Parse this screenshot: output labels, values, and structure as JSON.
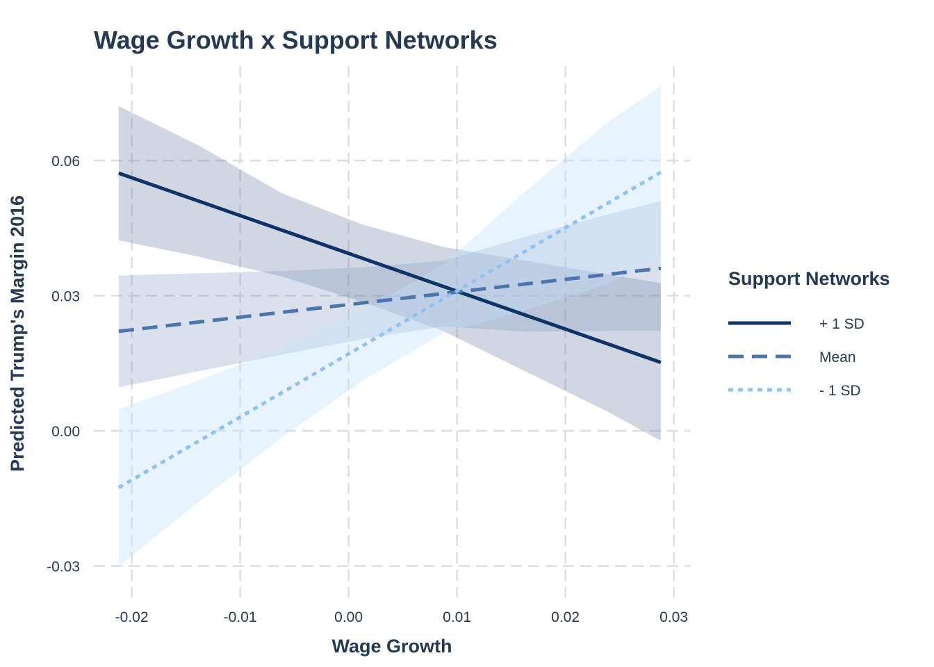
{
  "chart_data": {
    "type": "line",
    "title": "Wage Growth x Support Networks",
    "xlabel": "Wage Growth",
    "ylabel": "Predicted Trump's Margin 2016",
    "xlim": [
      -0.0235,
      0.0315
    ],
    "ylim": [
      -0.037,
      0.081
    ],
    "x_ticks": [
      -0.02,
      -0.01,
      0.0,
      0.01,
      0.02,
      0.03
    ],
    "x_tick_labels": [
      "-0.02",
      "-0.01",
      "0.00",
      "0.01",
      "0.02",
      "0.03"
    ],
    "y_ticks": [
      -0.03,
      0.0,
      0.03,
      0.06
    ],
    "y_tick_labels": [
      "-0.03",
      "0.00",
      "0.03",
      "0.06"
    ],
    "grid": true,
    "grid_style": "dashed",
    "legend": {
      "title": "Support Networks",
      "placement": "right"
    },
    "x": [
      -0.0212,
      0.0288
    ],
    "series": [
      {
        "name": "+ 1 SD",
        "color": "#0d3466",
        "line_style": "solid",
        "band_color": "#5a6f97",
        "band_opacity": 0.28,
        "x": [
          -0.0212,
          -0.0137,
          -0.0062,
          0.0013,
          0.0088,
          0.0163,
          0.0238,
          0.0288
        ],
        "values": [
          0.0572,
          0.0509,
          0.0446,
          0.0383,
          0.032,
          0.0257,
          0.0194,
          0.0152
        ],
        "lower": [
          0.0423,
          0.0386,
          0.0343,
          0.0286,
          0.0221,
          0.0132,
          0.0044,
          -0.0022
        ],
        "upper": [
          0.0721,
          0.0632,
          0.0528,
          0.0458,
          0.0408,
          0.0378,
          0.0348,
          0.0328
        ]
      },
      {
        "name": "Mean",
        "color": "#4a76ad",
        "line_style": "dashed",
        "band_color": "#7a94c0",
        "band_opacity": 0.28,
        "x": [
          -0.0212,
          -0.0137,
          -0.0062,
          0.0013,
          0.0088,
          0.0163,
          0.0238,
          0.0288
        ],
        "values": [
          0.0221,
          0.0242,
          0.0263,
          0.0284,
          0.0305,
          0.0326,
          0.0347,
          0.0361
        ],
        "lower": [
          0.0097,
          0.0133,
          0.0169,
          0.0204,
          0.0232,
          0.022,
          0.0222,
          0.0222
        ],
        "upper": [
          0.0345,
          0.035,
          0.0355,
          0.0363,
          0.0378,
          0.0431,
          0.048,
          0.051
        ]
      },
      {
        "name": "- 1 SD",
        "color": "#8fc2f0",
        "line_style": "dotted",
        "band_color": "#c4e2fb",
        "band_opacity": 0.4,
        "x": [
          -0.0212,
          -0.0137,
          -0.0062,
          0.0013,
          0.0088,
          0.0163,
          0.0238,
          0.0288
        ],
        "values": [
          -0.0126,
          -0.0021,
          0.0084,
          0.0189,
          0.0294,
          0.0399,
          0.0504,
          0.0574
        ],
        "lower": [
          -0.03,
          -0.0155,
          -0.0015,
          0.0112,
          0.0218,
          0.0267,
          0.0325,
          0.0383
        ],
        "upper": [
          0.0048,
          0.0113,
          0.0183,
          0.0266,
          0.037,
          0.0531,
          0.0683,
          0.0765
        ]
      }
    ]
  }
}
